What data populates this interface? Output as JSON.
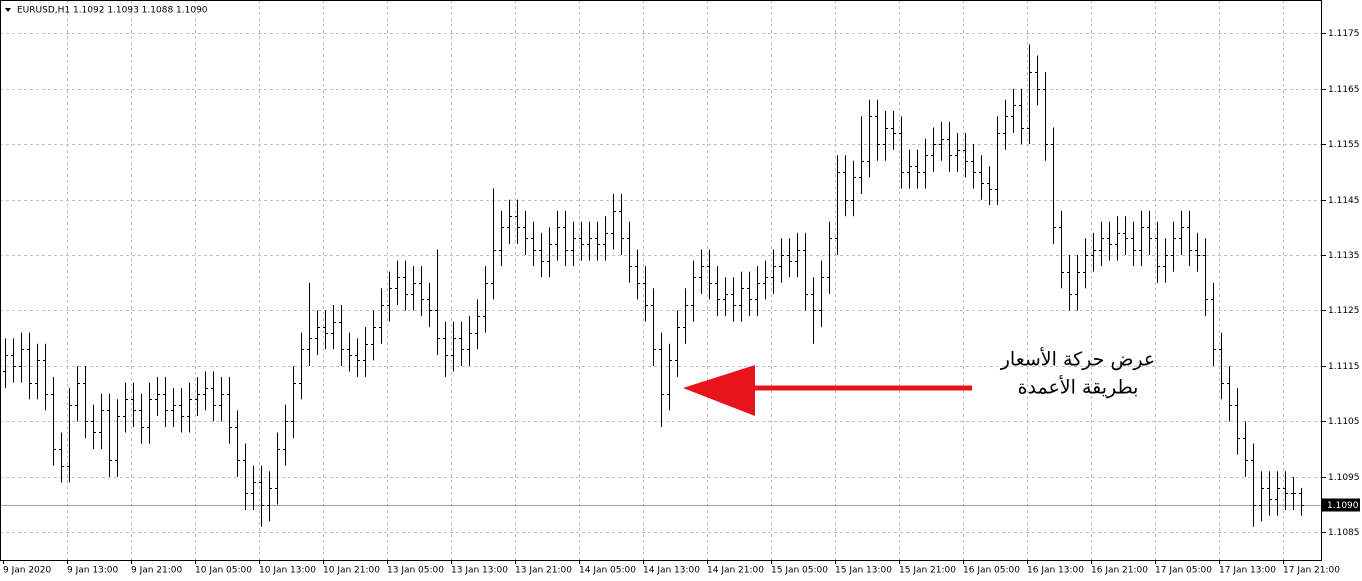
{
  "chart_data": {
    "type": "ohlc",
    "title": "EURUSD,H1  1.1092 1.1093 1.1088 1.1090",
    "annotation": [
      "عرض حركة الأسعار",
      "بطريقة الأعمدة"
    ],
    "color": "#000000",
    "annotation_color": "#e8141b",
    "grid": true,
    "ylim": [
      1.108,
      1.1181
    ],
    "yticks": [
      1.1175,
      1.1165,
      1.1155,
      1.1145,
      1.1135,
      1.1125,
      1.1115,
      1.1105,
      1.1095,
      1.1085
    ],
    "last_price": {
      "value": 1.109,
      "label": "1.1090"
    },
    "categories": [
      "9 Jan 2020",
      null,
      null,
      null,
      null,
      null,
      null,
      null,
      "9 Jan 13:00",
      null,
      null,
      null,
      null,
      null,
      null,
      null,
      "9 Jan 21:00",
      null,
      null,
      null,
      null,
      null,
      null,
      null,
      "10 Jan 05:00",
      null,
      null,
      null,
      null,
      null,
      null,
      null,
      "10 Jan 13:00",
      null,
      null,
      null,
      null,
      null,
      null,
      null,
      "10 Jan 21:00",
      null,
      null,
      null,
      null,
      null,
      null,
      null,
      "13 Jan 05:00",
      null,
      null,
      null,
      null,
      null,
      null,
      null,
      "13 Jan 13:00",
      null,
      null,
      null,
      null,
      null,
      null,
      null,
      "13 Jan 21:00",
      null,
      null,
      null,
      null,
      null,
      null,
      null,
      "14 Jan 05:00",
      null,
      null,
      null,
      null,
      null,
      null,
      null,
      "14 Jan 13:00",
      null,
      null,
      null,
      null,
      null,
      null,
      null,
      "14 Jan 21:00",
      null,
      null,
      null,
      null,
      null,
      null,
      null,
      "15 Jan 05:00",
      null,
      null,
      null,
      null,
      null,
      null,
      null,
      "15 Jan 13:00",
      null,
      null,
      null,
      null,
      null,
      null,
      null,
      "15 Jan 21:00",
      null,
      null,
      null,
      null,
      null,
      null,
      null,
      "16 Jan 05:00",
      null,
      null,
      null,
      null,
      null,
      null,
      null,
      "16 Jan 13:00",
      null,
      null,
      null,
      null,
      null,
      null,
      null,
      "16 Jan 21:00",
      null,
      null,
      null,
      null,
      null,
      null,
      null,
      "17 Jan 05:00",
      null,
      null,
      null,
      null,
      null,
      null,
      null,
      "17 Jan 13:00",
      null,
      null,
      null,
      null,
      null,
      null,
      null,
      "17 Jan 21:00",
      null,
      null
    ],
    "open": [
      1.1114,
      1.1117,
      1.1115,
      1.1118,
      1.1112,
      1.1116,
      1.111,
      1.11,
      1.1097,
      1.1108,
      1.1112,
      1.1105,
      1.1103,
      1.1107,
      1.1098,
      1.1106,
      1.1109,
      1.1107,
      1.1104,
      1.1109,
      1.111,
      1.1107,
      1.1108,
      1.1106,
      1.1109,
      1.111,
      1.1111,
      1.1108,
      1.111,
      1.1104,
      1.1098,
      1.1092,
      1.1094,
      1.109,
      1.1093,
      1.11,
      1.1105,
      1.1112,
      1.1118,
      1.112,
      1.1122,
      1.1121,
      1.1123,
      1.1118,
      1.1117,
      1.1116,
      1.1119,
      1.1122,
      1.1126,
      1.1129,
      1.1131,
      1.1128,
      1.113,
      1.1127,
      1.1125,
      1.112,
      1.1117,
      1.112,
      1.1118,
      1.1121,
      1.1124,
      1.113,
      1.1136,
      1.114,
      1.1142,
      1.114,
      1.1138,
      1.1136,
      1.1134,
      1.1137,
      1.114,
      1.1136,
      1.1138,
      1.1137,
      1.1138,
      1.1137,
      1.1139,
      1.1143,
      1.1138,
      1.1133,
      1.113,
      1.1126,
      1.1118,
      1.111,
      1.1116,
      1.1122,
      1.1126,
      1.1131,
      1.1133,
      1.113,
      1.1127,
      1.1128,
      1.1126,
      1.1129,
      1.1127,
      1.113,
      1.1131,
      1.1133,
      1.1135,
      1.1134,
      1.1136,
      1.1128,
      1.1125,
      1.1131,
      1.1138,
      1.115,
      1.1145,
      1.1149,
      1.1152,
      1.116,
      1.1155,
      1.1158,
      1.1157,
      1.115,
      1.1151,
      1.115,
      1.1153,
      1.1155,
      1.1156,
      1.1153,
      1.1154,
      1.1152,
      1.115,
      1.1148,
      1.1147,
      1.1157,
      1.116,
      1.1162,
      1.1158,
      1.1168,
      1.1165,
      1.1155,
      1.114,
      1.1132,
      1.1128,
      1.1132,
      1.1135,
      1.1136,
      1.1138,
      1.1137,
      1.1139,
      1.1138,
      1.1136,
      1.114,
      1.1138,
      1.1133,
      1.1135,
      1.1138,
      1.114,
      1.1136,
      1.1135,
      1.1127,
      1.1118,
      1.1112,
      1.1108,
      1.1102,
      1.1098,
      1.109,
      1.1093,
      1.1091,
      1.1093,
      1.1092,
      1.1092
    ],
    "high": [
      1.112,
      1.112,
      1.1121,
      1.1121,
      1.1119,
      1.1119,
      1.1113,
      1.1103,
      1.1111,
      1.1115,
      1.1115,
      1.1108,
      1.111,
      1.111,
      1.1109,
      1.1112,
      1.1112,
      1.111,
      1.1112,
      1.1113,
      1.1113,
      1.1111,
      1.1111,
      1.1112,
      1.1113,
      1.1114,
      1.1114,
      1.1113,
      1.1113,
      1.1107,
      1.1101,
      1.1097,
      1.1097,
      1.1096,
      1.1103,
      1.1108,
      1.1115,
      1.1121,
      1.113,
      1.1125,
      1.1125,
      1.1126,
      1.1126,
      1.1121,
      1.112,
      1.1122,
      1.1125,
      1.1129,
      1.1132,
      1.1134,
      1.1134,
      1.1133,
      1.1133,
      1.113,
      1.1136,
      1.1123,
      1.1123,
      1.1123,
      1.1124,
      1.1127,
      1.1133,
      1.1147,
      1.1143,
      1.1145,
      1.1145,
      1.1143,
      1.1141,
      1.1139,
      1.114,
      1.1143,
      1.1143,
      1.1141,
      1.1141,
      1.1141,
      1.1141,
      1.1142,
      1.1146,
      1.1146,
      1.1141,
      1.1136,
      1.1133,
      1.1129,
      1.1121,
      1.1119,
      1.1125,
      1.1129,
      1.1134,
      1.1136,
      1.1136,
      1.1133,
      1.1131,
      1.1131,
      1.1132,
      1.1132,
      1.1133,
      1.1134,
      1.1136,
      1.1138,
      1.1138,
      1.1139,
      1.1139,
      1.1131,
      1.1134,
      1.1141,
      1.1153,
      1.1153,
      1.1152,
      1.116,
      1.1163,
      1.1163,
      1.1161,
      1.1161,
      1.116,
      1.1154,
      1.1154,
      1.1156,
      1.1158,
      1.1159,
      1.1159,
      1.1157,
      1.1157,
      1.1155,
      1.1153,
      1.1151,
      1.116,
      1.1163,
      1.1165,
      1.1165,
      1.1173,
      1.1171,
      1.1168,
      1.1158,
      1.1143,
      1.1135,
      1.1135,
      1.1138,
      1.1139,
      1.1141,
      1.1141,
      1.1142,
      1.1142,
      1.1141,
      1.1143,
      1.1143,
      1.1141,
      1.1138,
      1.1141,
      1.1143,
      1.1143,
      1.1139,
      1.1138,
      1.113,
      1.1121,
      1.1115,
      1.1111,
      1.1105,
      1.1101,
      1.1096,
      1.1096,
      1.1096,
      1.1096,
      1.1095,
      1.1093
    ],
    "low": [
      1.1111,
      1.1112,
      1.1112,
      1.1109,
      1.1109,
      1.1107,
      1.1097,
      1.1094,
      1.1094,
      1.1105,
      1.1102,
      1.11,
      1.11,
      1.1095,
      1.1095,
      1.1103,
      1.1104,
      1.1101,
      1.1101,
      1.1106,
      1.1104,
      1.1104,
      1.1103,
      1.1103,
      1.1106,
      1.1107,
      1.1105,
      1.1105,
      1.1101,
      1.1095,
      1.1089,
      1.1089,
      1.1086,
      1.1087,
      1.109,
      1.1097,
      1.1102,
      1.1109,
      1.1115,
      1.1117,
      1.1118,
      1.1118,
      1.1115,
      1.1114,
      1.1113,
      1.1113,
      1.1116,
      1.1119,
      1.1123,
      1.1126,
      1.1125,
      1.1125,
      1.1124,
      1.1122,
      1.1117,
      1.1113,
      1.1114,
      1.1115,
      1.1115,
      1.1118,
      1.1121,
      1.1127,
      1.1133,
      1.1137,
      1.1137,
      1.1135,
      1.1133,
      1.1131,
      1.1131,
      1.1134,
      1.1133,
      1.1133,
      1.1134,
      1.1134,
      1.1134,
      1.1134,
      1.1136,
      1.1135,
      1.113,
      1.1127,
      1.1123,
      1.1115,
      1.1104,
      1.1107,
      1.1113,
      1.1119,
      1.1123,
      1.1128,
      1.1127,
      1.1124,
      1.1124,
      1.1123,
      1.1123,
      1.1124,
      1.1124,
      1.1127,
      1.1128,
      1.113,
      1.1131,
      1.1131,
      1.1125,
      1.1119,
      1.1122,
      1.1128,
      1.1135,
      1.1142,
      1.1142,
      1.1146,
      1.1149,
      1.1152,
      1.1152,
      1.1154,
      1.1147,
      1.1147,
      1.1147,
      1.1147,
      1.115,
      1.1152,
      1.115,
      1.115,
      1.1149,
      1.1147,
      1.1145,
      1.1144,
      1.1144,
      1.1154,
      1.1157,
      1.1155,
      1.1155,
      1.1162,
      1.1152,
      1.1137,
      1.1129,
      1.1125,
      1.1125,
      1.1129,
      1.1132,
      1.1133,
      1.1134,
      1.1134,
      1.1135,
      1.1133,
      1.1133,
      1.1135,
      1.113,
      1.113,
      1.1132,
      1.1135,
      1.1133,
      1.1132,
      1.1124,
      1.1115,
      1.1109,
      1.1105,
      1.1099,
      1.1095,
      1.1086,
      1.1087,
      1.1088,
      1.1088,
      1.1089,
      1.1089,
      1.1088
    ],
    "close": [
      1.1117,
      1.1115,
      1.1118,
      1.1112,
      1.1116,
      1.111,
      1.11,
      1.1097,
      1.1108,
      1.1112,
      1.1105,
      1.1103,
      1.1107,
      1.1098,
      1.1106,
      1.1109,
      1.1107,
      1.1104,
      1.1109,
      1.111,
      1.1107,
      1.1108,
      1.1106,
      1.1109,
      1.111,
      1.1111,
      1.1108,
      1.111,
      1.1104,
      1.1098,
      1.1092,
      1.1094,
      1.109,
      1.1093,
      1.11,
      1.1105,
      1.1112,
      1.1118,
      1.112,
      1.1122,
      1.1121,
      1.1123,
      1.1118,
      1.1117,
      1.1116,
      1.1119,
      1.1122,
      1.1126,
      1.1129,
      1.1131,
      1.1128,
      1.113,
      1.1127,
      1.1125,
      1.112,
      1.1117,
      1.112,
      1.1118,
      1.1121,
      1.1124,
      1.113,
      1.1136,
      1.114,
      1.1142,
      1.114,
      1.1138,
      1.1136,
      1.1134,
      1.1137,
      1.114,
      1.1136,
      1.1138,
      1.1137,
      1.1138,
      1.1137,
      1.1139,
      1.1143,
      1.1138,
      1.1133,
      1.113,
      1.1126,
      1.1118,
      1.111,
      1.1116,
      1.1122,
      1.1126,
      1.1131,
      1.1133,
      1.113,
      1.1127,
      1.1128,
      1.1126,
      1.1129,
      1.1127,
      1.113,
      1.1131,
      1.1133,
      1.1135,
      1.1134,
      1.1136,
      1.1128,
      1.1125,
      1.1131,
      1.1138,
      1.115,
      1.1145,
      1.1149,
      1.1152,
      1.116,
      1.1155,
      1.1158,
      1.1157,
      1.115,
      1.1151,
      1.115,
      1.1153,
      1.1155,
      1.1156,
      1.1153,
      1.1154,
      1.1152,
      1.115,
      1.1148,
      1.1147,
      1.1157,
      1.116,
      1.1162,
      1.1158,
      1.1168,
      1.1165,
      1.1155,
      1.114,
      1.1132,
      1.1128,
      1.1132,
      1.1135,
      1.1136,
      1.1138,
      1.1137,
      1.1139,
      1.1138,
      1.1136,
      1.114,
      1.1138,
      1.1133,
      1.1135,
      1.1138,
      1.114,
      1.1136,
      1.1135,
      1.1127,
      1.1118,
      1.1112,
      1.1108,
      1.1102,
      1.1098,
      1.109,
      1.1093,
      1.1091,
      1.1093,
      1.1092,
      1.1092,
      1.109
    ]
  }
}
